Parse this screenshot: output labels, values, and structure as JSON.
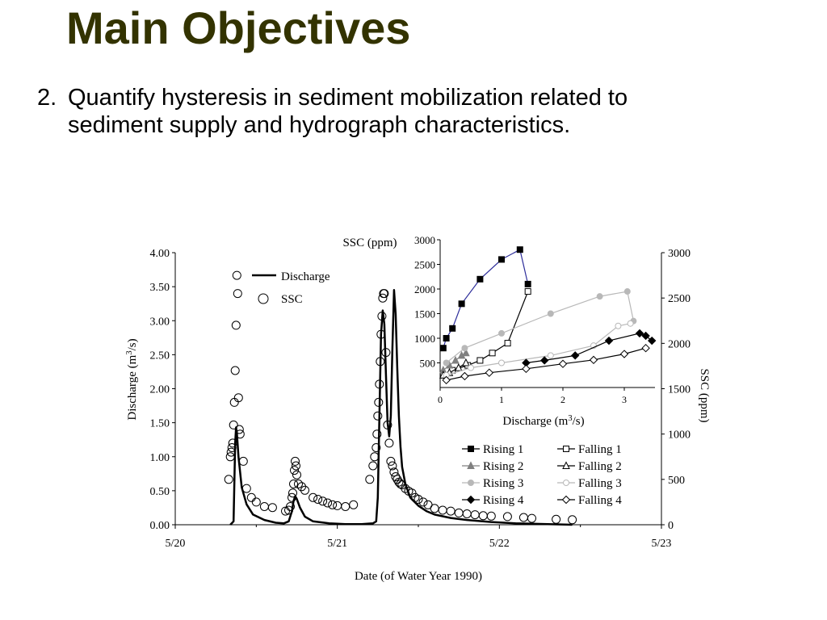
{
  "slide": {
    "title": "Main Objectives",
    "bullet_number": "2.",
    "bullet_line1": "Quantify hysteresis in sediment mobilization related to",
    "bullet_line2": "sediment supply and hydrograph characteristics."
  },
  "chart_data": [
    {
      "type": "line",
      "xlabel": "Date (of Water Year 1990)",
      "ylabel": "Discharge (m3/s)",
      "ylabel_right": "SSC (ppm)",
      "x_ticks": [
        "5/20",
        "5/21",
        "5/22",
        "5/23"
      ],
      "xlim": [
        0,
        3
      ],
      "ylim": [
        0,
        4
      ],
      "ylim_right": [
        0,
        3000
      ],
      "y_ticks": [
        "0.00",
        "0.50",
        "1.00",
        "1.50",
        "2.00",
        "2.50",
        "3.00",
        "3.50",
        "4.00"
      ],
      "y_ticks_right": [
        "0",
        "500",
        "1000",
        "1500",
        "2000",
        "2500",
        "3000"
      ],
      "legend": [
        {
          "label": "Discharge",
          "style": "line"
        },
        {
          "label": "SSC",
          "style": "open-circle"
        }
      ],
      "series": [
        {
          "name": "Discharge",
          "axis": "left",
          "x": [
            0.34,
            0.36,
            0.37,
            0.375,
            0.38,
            0.39,
            0.41,
            0.44,
            0.48,
            0.55,
            0.62,
            0.67,
            0.7,
            0.72,
            0.73,
            0.74,
            0.75,
            0.77,
            0.8,
            0.85,
            0.95,
            1.05,
            1.15,
            1.22,
            1.24,
            1.25,
            1.26,
            1.27,
            1.28,
            1.29,
            1.3,
            1.31,
            1.32,
            1.33,
            1.34,
            1.35,
            1.36,
            1.37,
            1.38,
            1.39,
            1.4,
            1.42,
            1.45,
            1.5,
            1.55,
            1.6,
            1.7,
            1.8,
            1.95,
            2.1,
            2.3,
            2.45
          ],
          "values": [
            0.0,
            0.05,
            1.2,
            1.43,
            1.35,
            1.0,
            0.55,
            0.3,
            0.15,
            0.07,
            0.03,
            0.02,
            0.05,
            0.2,
            0.35,
            0.42,
            0.38,
            0.25,
            0.12,
            0.05,
            0.02,
            0.01,
            0.01,
            0.02,
            0.05,
            0.4,
            1.6,
            2.8,
            3.15,
            2.95,
            2.2,
            1.5,
            1.3,
            1.6,
            2.6,
            3.45,
            3.1,
            2.3,
            1.6,
            1.15,
            0.85,
            0.6,
            0.4,
            0.28,
            0.2,
            0.15,
            0.1,
            0.07,
            0.04,
            0.02,
            0.01,
            0.0
          ]
        },
        {
          "name": "SSC",
          "axis": "right",
          "x": [
            0.33,
            0.34,
            0.345,
            0.35,
            0.355,
            0.36,
            0.365,
            0.37,
            0.375,
            0.38,
            0.385,
            0.39,
            0.395,
            0.4,
            0.42,
            0.44,
            0.47,
            0.5,
            0.55,
            0.6,
            0.68,
            0.7,
            0.71,
            0.72,
            0.725,
            0.73,
            0.735,
            0.74,
            0.745,
            0.75,
            0.76,
            0.78,
            0.8,
            0.85,
            0.88,
            0.91,
            0.94,
            0.97,
            1.0,
            1.05,
            1.1,
            1.2,
            1.22,
            1.23,
            1.24,
            1.245,
            1.25,
            1.255,
            1.26,
            1.265,
            1.27,
            1.275,
            1.28,
            1.285,
            1.29,
            1.3,
            1.31,
            1.32,
            1.33,
            1.34,
            1.35,
            1.36,
            1.37,
            1.38,
            1.39,
            1.4,
            1.42,
            1.44,
            1.46,
            1.48,
            1.5,
            1.53,
            1.56,
            1.6,
            1.65,
            1.7,
            1.75,
            1.8,
            1.85,
            1.9,
            1.95,
            2.05,
            2.15,
            2.2,
            2.35,
            2.45
          ],
          "values": [
            500,
            750,
            800,
            850,
            900,
            1100,
            1350,
            1700,
            2200,
            2750,
            2550,
            1400,
            1050,
            1000,
            700,
            400,
            300,
            250,
            200,
            190,
            150,
            160,
            200,
            300,
            350,
            450,
            600,
            700,
            650,
            550,
            450,
            420,
            380,
            300,
            280,
            260,
            240,
            220,
            210,
            200,
            220,
            500,
            650,
            750,
            850,
            1000,
            1200,
            1350,
            1550,
            1800,
            2100,
            2300,
            2500,
            2550,
            2550,
            1900,
            1100,
            900,
            700,
            650,
            580,
            530,
            500,
            470,
            450,
            440,
            400,
            370,
            350,
            300,
            280,
            250,
            220,
            180,
            160,
            150,
            130,
            120,
            110,
            100,
            95,
            90,
            80,
            70,
            60,
            55
          ]
        }
      ]
    },
    {
      "type": "scatter",
      "xlabel": "Discharge (m3/s)",
      "ylabel": "SSC (ppm)",
      "x_ticks": [
        "0",
        "1",
        "2",
        "3"
      ],
      "y_ticks": [
        "500",
        "1000",
        "1500",
        "2000",
        "2500",
        "3000"
      ],
      "xlim": [
        0,
        3.5
      ],
      "ylim": [
        0,
        3000
      ],
      "legend": [
        {
          "label": "Rising 1",
          "color": "#000000",
          "marker": "filled-square"
        },
        {
          "label": "Falling 1",
          "color": "#000000",
          "marker": "open-square"
        },
        {
          "label": "Rising 2",
          "color": "#808080",
          "marker": "filled-triangle"
        },
        {
          "label": "Falling 2",
          "color": "#000000",
          "marker": "open-triangle"
        },
        {
          "label": "Rising 3",
          "color": "#b8b8b8",
          "marker": "filled-circle"
        },
        {
          "label": "Falling 3",
          "color": "#b8b8b8",
          "marker": "open-circle"
        },
        {
          "label": "Rising 4",
          "color": "#000000",
          "marker": "filled-diamond"
        },
        {
          "label": "Falling 4",
          "color": "#000000",
          "marker": "open-diamond"
        }
      ],
      "series": [
        {
          "name": "Rising 1",
          "x": [
            0.05,
            0.1,
            0.2,
            0.35,
            0.65,
            1.0,
            1.3,
            1.43
          ],
          "values": [
            800,
            1000,
            1200,
            1700,
            2200,
            2600,
            2800,
            2100
          ]
        },
        {
          "name": "Falling 1",
          "x": [
            1.43,
            1.1,
            0.85,
            0.65,
            0.45,
            0.2,
            0.05
          ],
          "values": [
            1950,
            900,
            700,
            550,
            450,
            350,
            250
          ]
        },
        {
          "name": "Rising 2",
          "x": [
            0.05,
            0.15,
            0.25,
            0.35,
            0.42
          ],
          "values": [
            350,
            450,
            550,
            650,
            700
          ]
        },
        {
          "name": "Falling 2",
          "x": [
            0.42,
            0.3,
            0.15,
            0.05
          ],
          "values": [
            500,
            400,
            300,
            250
          ]
        },
        {
          "name": "Rising 3",
          "x": [
            0.1,
            0.4,
            1.0,
            1.8,
            2.6,
            3.05,
            3.15
          ],
          "values": [
            500,
            800,
            1100,
            1500,
            1850,
            1950,
            1350
          ]
        },
        {
          "name": "Falling 3",
          "x": [
            3.1,
            2.9,
            2.5,
            1.8,
            1.0,
            0.5,
            0.1
          ],
          "values": [
            1300,
            1250,
            850,
            650,
            500,
            400,
            250
          ]
        },
        {
          "name": "Rising 4",
          "x": [
            1.4,
            1.7,
            2.2,
            2.75,
            3.25,
            3.35,
            3.45
          ],
          "values": [
            500,
            550,
            650,
            950,
            1100,
            1050,
            950
          ]
        },
        {
          "name": "Falling 4",
          "x": [
            3.35,
            3.0,
            2.5,
            2.0,
            1.4,
            0.8,
            0.4,
            0.1
          ],
          "values": [
            800,
            680,
            560,
            480,
            380,
            300,
            230,
            150
          ]
        }
      ]
    }
  ]
}
